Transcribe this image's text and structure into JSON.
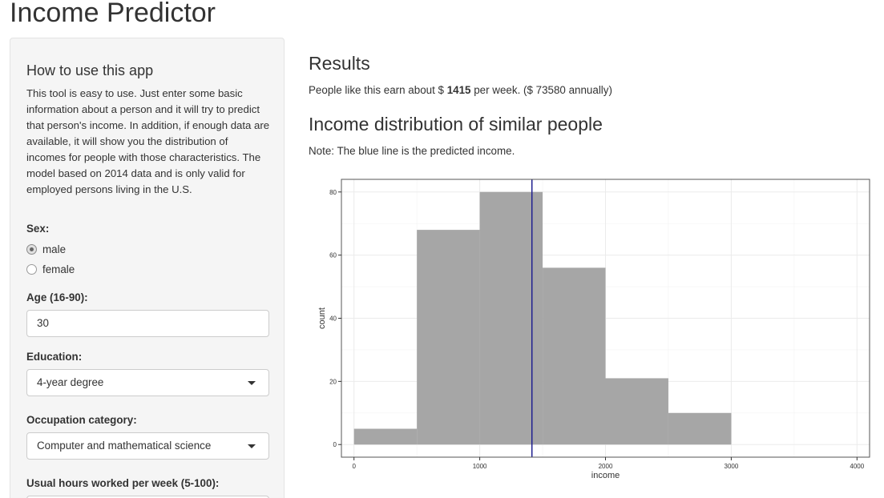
{
  "app": {
    "title": "Income Predictor"
  },
  "sidebar": {
    "title": "How to use this app",
    "description": "This tool is easy to use. Just enter some basic information about a person and it will try to predict that person's income. In addition, if enough data are available, it will show you the distribution of incomes for people with those characteristics. The model based on 2014 data and is only valid for employed persons living in the U.S.",
    "sex": {
      "label": "Sex:",
      "options": [
        "male",
        "female"
      ],
      "selected": "male"
    },
    "age": {
      "label": "Age (16-90):",
      "value": "30"
    },
    "education": {
      "label": "Education:",
      "value": "4-year degree"
    },
    "occupation": {
      "label": "Occupation category:",
      "value": "Computer and mathematical science"
    },
    "hours": {
      "label": "Usual hours worked per week (5-100):"
    }
  },
  "results": {
    "heading": "Results",
    "text_prefix": "People like this earn about $ ",
    "weekly": "1415",
    "text_suffix": " per week. ($ 73580 annually)"
  },
  "distribution": {
    "heading": "Income distribution of similar people",
    "note": "Note: The blue line is the predicted income."
  },
  "chart_data": {
    "type": "bar",
    "xlabel": "income",
    "ylabel": "count",
    "bins": [
      {
        "from": 0,
        "to": 500,
        "count": 5
      },
      {
        "from": 500,
        "to": 1000,
        "count": 68
      },
      {
        "from": 1000,
        "to": 1500,
        "count": 80
      },
      {
        "from": 1500,
        "to": 2000,
        "count": 56
      },
      {
        "from": 2000,
        "to": 2500,
        "count": 21
      },
      {
        "from": 2500,
        "to": 3000,
        "count": 10
      }
    ],
    "xlim": [
      -100,
      4100
    ],
    "ylim": [
      -4,
      84
    ],
    "xticks": [
      0,
      1000,
      2000,
      3000,
      4000
    ],
    "yticks": [
      0,
      20,
      40,
      60,
      80
    ],
    "predicted_line": 1415,
    "grid": true,
    "colors": {
      "bars": "#a6a6a6",
      "line": "#1f1f8f",
      "grid": "#ebebeb"
    }
  }
}
